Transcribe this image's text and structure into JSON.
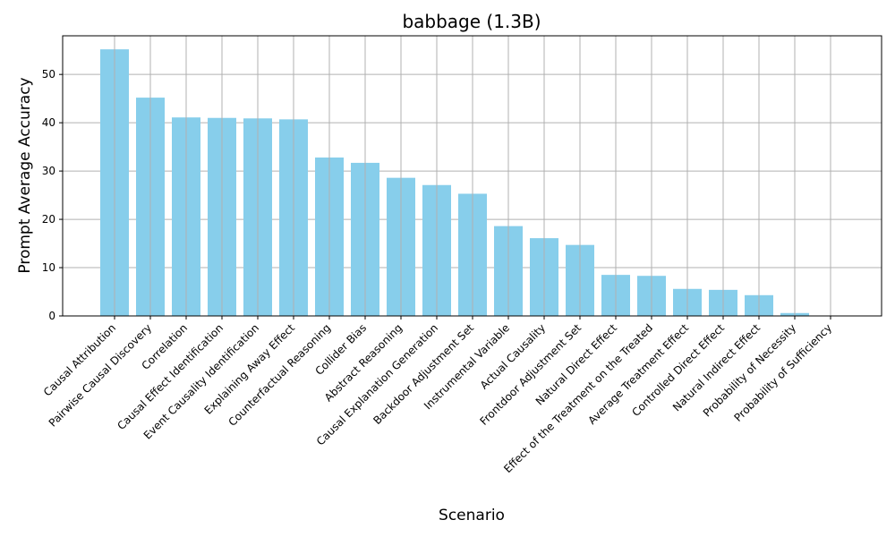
{
  "chart_data": {
    "type": "bar",
    "title": "babbage (1.3B)",
    "xlabel": "Scenario",
    "ylabel": "Prompt Average Accuracy",
    "ylim": [
      0,
      58
    ],
    "yticks": [
      0,
      10,
      20,
      30,
      40,
      50
    ],
    "grid": true,
    "bar_color": "#87CEEB",
    "grid_color": "#b0b0b0",
    "categories": [
      "Causal Attribution",
      "Pairwise Causal Discovery",
      "Correlation",
      "Causal Effect Identification",
      "Event Causality Identification",
      "Explaining Away Effect",
      "Counterfactual Reasoning",
      "Collider Bias",
      "Abstract Reasoning",
      "Causal Explanation Generation",
      "Backdoor Adjustment Set",
      "Instrumental Variable",
      "Actual Causality",
      "Frontdoor Adjustment Set",
      "Natural Direct Effect",
      "Effect of the Treatment on the Treated",
      "Average Treatment Effect",
      "Controlled Direct Effect",
      "Natural Indirect Effect",
      "Probability of Necessity",
      "Probability of Sufficiency"
    ],
    "values": [
      55.2,
      45.2,
      41.1,
      41.0,
      40.9,
      40.7,
      32.8,
      31.7,
      28.6,
      27.1,
      25.3,
      18.6,
      16.1,
      14.7,
      8.5,
      8.3,
      5.6,
      5.4,
      4.3,
      0.6,
      0.0
    ]
  }
}
